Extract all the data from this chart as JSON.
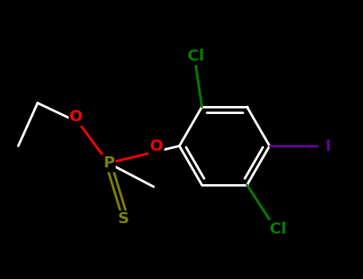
{
  "bg_color": "#000000",
  "atom_colors": {
    "C": "#ffffff",
    "O": "#ff0000",
    "P": "#808000",
    "S": "#808000",
    "Cl": "#008000",
    "I": "#660099"
  },
  "bond_lw": 2.2,
  "font_size": 14,
  "fig_width": 4.55,
  "fig_height": 3.5,
  "dpi": 100,
  "xlim": [
    -3.5,
    4.5
  ],
  "ylim": [
    -3.0,
    3.5
  ]
}
